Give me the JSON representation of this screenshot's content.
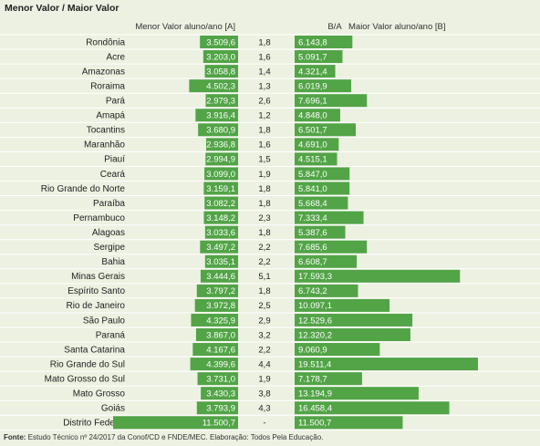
{
  "title": "Menor Valor / Maior Valor",
  "headers": {
    "min": "Menor Valor aluno/ano [A]",
    "ratio": "B/A",
    "max": "Maior Valor aluno/ano [B]"
  },
  "source": {
    "label": "Fonte:",
    "text": " Estudo Técnico nº 24/2017 da Conof/CD e FNDE/MEC. Elaboração: Todos Pela Educação."
  },
  "colors": {
    "bar": "#52a447",
    "row_line": "#ffffff",
    "background": "#ecf1e1"
  },
  "chart_data": {
    "type": "bar",
    "categories": [
      "Rondônia",
      "Acre",
      "Amazonas",
      "Roraima",
      "Pará",
      "Amapá",
      "Tocantins",
      "Maranhão",
      "Piauí",
      "Ceará",
      "Rio Grande do Norte",
      "Paraíba",
      "Pernambuco",
      "Alagoas",
      "Sergipe",
      "Bahia",
      "Minas Gerais",
      "Espírito Santo",
      "Rio de Janeiro",
      "São Paulo",
      "Paraná",
      "Santa Catarina",
      "Rio Grande do Sul",
      "Mato Grosso do Sul",
      "Mato Grosso",
      "Goiás",
      "Distrito Federal"
    ],
    "series": [
      {
        "name": "Menor Valor aluno/ano [A]",
        "values": [
          3509.6,
          3203.0,
          3058.8,
          4502.3,
          2979.3,
          3916.4,
          3680.9,
          2936.8,
          2994.9,
          3099.0,
          3159.1,
          3082.2,
          3148.2,
          3033.6,
          3497.2,
          3035.1,
          3444.6,
          3797.2,
          3972.8,
          4325.9,
          3867.0,
          4167.6,
          4399.6,
          3731.0,
          3430.3,
          3793.9,
          11500.7
        ],
        "labels": [
          "3.509,6",
          "3.203,0",
          "3.058,8",
          "4.502,3",
          "2.979,3",
          "3.916,4",
          "3.680,9",
          "2.936,8",
          "2.994,9",
          "3.099,0",
          "3.159,1",
          "3.082,2",
          "3.148,2",
          "3.033,6",
          "3.497,2",
          "3.035,1",
          "3.444,6",
          "3.797,2",
          "3.972,8",
          "4.325,9",
          "3.867,0",
          "4.167,6",
          "4.399,6",
          "3.731,0",
          "3.430,3",
          "3.793,9",
          "11.500,7"
        ]
      },
      {
        "name": "Maior Valor aluno/ano [B]",
        "values": [
          6143.8,
          5091.7,
          4321.4,
          6019.9,
          7696.1,
          4848.0,
          6501.7,
          4691.0,
          4515.1,
          5847.0,
          5841.0,
          5668.4,
          7333.4,
          5387.6,
          7685.6,
          6608.7,
          17593.3,
          6743.2,
          10097.1,
          12529.6,
          12320.2,
          9060.9,
          19511.4,
          7178.7,
          13194.9,
          16458.4,
          11500.7
        ],
        "labels": [
          "6.143,8",
          "5.091,7",
          "4.321,4",
          "6.019,9",
          "7.696,1",
          "4.848,0",
          "6.501,7",
          "4.691,0",
          "4.515,1",
          "5.847,0",
          "5.841,0",
          "5.668,4",
          "7.333,4",
          "5.387,6",
          "7.685,6",
          "6.608,7",
          "17.593,3",
          "6.743,2",
          "10.097,1",
          "12.529,6",
          "12.320,2",
          "9.060,9",
          "19.511,4",
          "7.178,7",
          "13.194,9",
          "16.458,4",
          "11.500,7"
        ]
      }
    ],
    "ratio": [
      "1,8",
      "1,6",
      "1,4",
      "1,3",
      "2,6",
      "1,2",
      "1,8",
      "1,6",
      "1,5",
      "1,9",
      "1,8",
      "1,8",
      "2,3",
      "1,8",
      "2,2",
      "2,2",
      "5,1",
      "1,8",
      "2,5",
      "2,9",
      "3,2",
      "2,2",
      "4,4",
      "1,9",
      "3,8",
      "4,3",
      "-"
    ],
    "grid": false
  }
}
